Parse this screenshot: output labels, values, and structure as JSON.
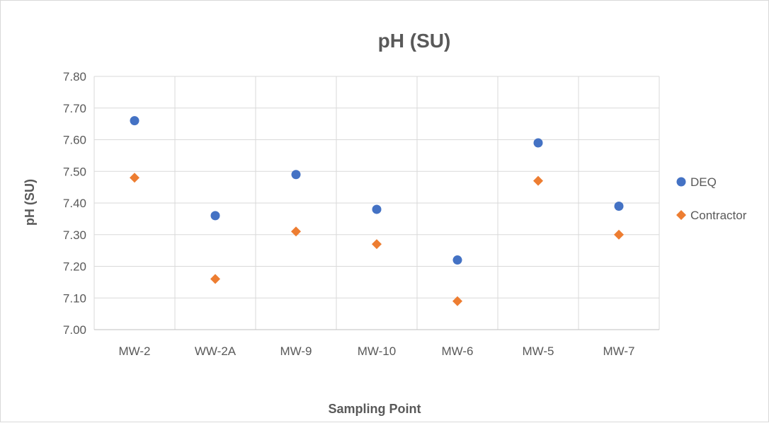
{
  "chart_data": {
    "type": "scatter",
    "title": "pH (SU)",
    "xlabel": "Sampling Point",
    "ylabel": "pH (SU)",
    "categories": [
      "MW-2",
      "WW-2A",
      "MW-9",
      "MW-10",
      "MW-6",
      "MW-5",
      "MW-7"
    ],
    "ylim": [
      7.0,
      7.8
    ],
    "y_ticks": [
      "7.00",
      "7.10",
      "7.20",
      "7.30",
      "7.40",
      "7.50",
      "7.60",
      "7.70",
      "7.80"
    ],
    "grid": true,
    "legend_position": "right",
    "series": [
      {
        "name": "DEQ",
        "marker": "circle",
        "color": "#4472c4",
        "values": [
          7.66,
          7.36,
          7.49,
          7.38,
          7.22,
          7.59,
          7.39
        ]
      },
      {
        "name": "Contractor",
        "marker": "diamond",
        "color": "#ed7d31",
        "values": [
          7.48,
          7.16,
          7.31,
          7.27,
          7.09,
          7.47,
          7.3
        ]
      }
    ]
  }
}
